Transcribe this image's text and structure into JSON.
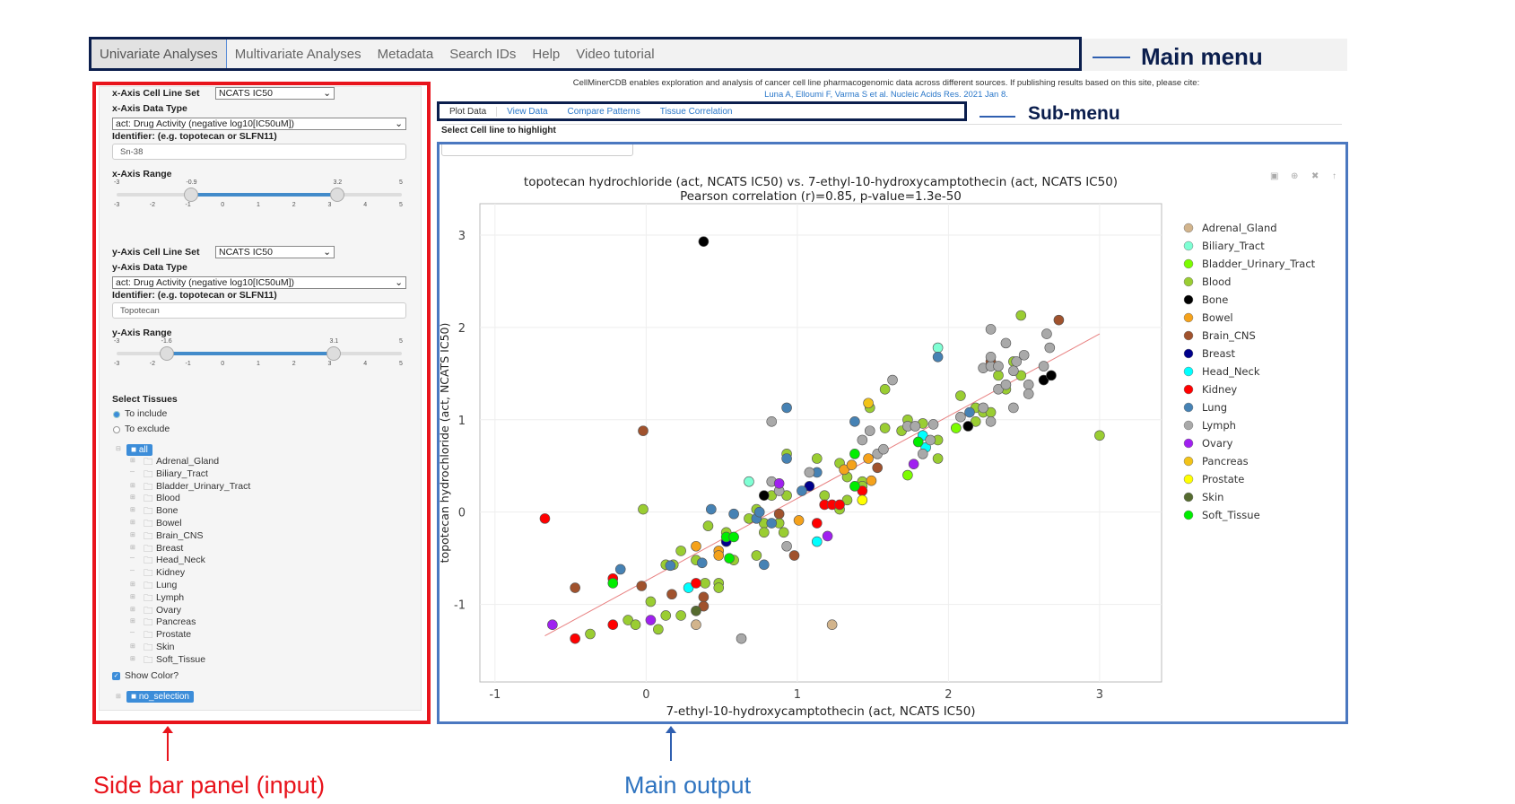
{
  "main_menu": {
    "items": [
      "Univariate Analyses",
      "Multivariate Analyses",
      "Metadata",
      "Search IDs",
      "Help",
      "Video tutorial"
    ],
    "active": 0
  },
  "annotations": {
    "main_menu": "Main menu",
    "sub_menu": "Sub-menu",
    "sidebar": "Side bar panel (input)",
    "main_output": "Main output"
  },
  "citation": {
    "text": "CellMinerCDB enables exploration and analysis of cancer cell line pharmacogenomic data across different sources. If publishing results based on this site, please cite:",
    "link": "Luna A, Elloumi F, Varma S et al. Nucleic Acids Res. 2021 Jan 8."
  },
  "sub_menu": {
    "items": [
      "Plot Data",
      "View Data",
      "Compare Patterns",
      "Tissue Correlation"
    ],
    "active": 0
  },
  "highlight": {
    "label": "Select Cell line to highlight",
    "value": ""
  },
  "sidebar": {
    "x": {
      "cellset_label": "x-Axis Cell Line Set",
      "cellset": "NCATS IC50",
      "datatype_label": "x-Axis Data Type",
      "datatype": "act: Drug Activity (negative log10[IC50uM])",
      "identifier_label": "Identifier: (e.g. topotecan or SLFN11)",
      "identifier": "Sn-38",
      "range_label": "x-Axis Range",
      "min": "-3",
      "max": "5",
      "low": "-0.9",
      "high": "3.2",
      "ticks": [
        "-3",
        "-2",
        "-1",
        "0",
        "1",
        "2",
        "3",
        "4",
        "5"
      ]
    },
    "y": {
      "cellset_label": "y-Axis Cell Line Set",
      "cellset": "NCATS IC50",
      "datatype_label": "y-Axis Data Type",
      "datatype": "act: Drug Activity (negative log10[IC50uM])",
      "identifier_label": "Identifier: (e.g. topotecan or SLFN11)",
      "identifier": "Topotecan",
      "range_label": "y-Axis Range",
      "min": "-3",
      "max": "5",
      "low": "-1.6",
      "high": "3.1",
      "ticks": [
        "-3",
        "-2",
        "-1",
        "0",
        "1",
        "2",
        "3",
        "4",
        "5"
      ]
    },
    "tissues_label": "Select Tissues",
    "include": "To include",
    "exclude": "To exclude",
    "mode": "include",
    "tree_root": "all",
    "tree": [
      {
        "n": "Adrenal_Gland",
        "e": 1
      },
      {
        "n": "Biliary_Tract",
        "e": 0
      },
      {
        "n": "Bladder_Urinary_Tract",
        "e": 1
      },
      {
        "n": "Blood",
        "e": 1
      },
      {
        "n": "Bone",
        "e": 1
      },
      {
        "n": "Bowel",
        "e": 1
      },
      {
        "n": "Brain_CNS",
        "e": 1
      },
      {
        "n": "Breast",
        "e": 1
      },
      {
        "n": "Head_Neck",
        "e": 0
      },
      {
        "n": "Kidney",
        "e": 0
      },
      {
        "n": "Lung",
        "e": 1
      },
      {
        "n": "Lymph",
        "e": 1
      },
      {
        "n": "Ovary",
        "e": 1
      },
      {
        "n": "Pancreas",
        "e": 1
      },
      {
        "n": "Prostate",
        "e": 0
      },
      {
        "n": "Skin",
        "e": 1
      },
      {
        "n": "Soft_Tissue",
        "e": 1
      }
    ],
    "show_color": "Show Color?",
    "show_color_checked": true,
    "no_selection": "no_selection"
  },
  "modebar": [
    "camera-icon",
    "zoom-icon",
    "autoscale-icon",
    "reset-icon"
  ],
  "chart_data": {
    "type": "scatter",
    "title": "topotecan hydrochloride (act, NCATS IC50) vs. 7-ethyl-10-hydroxycamptothecin (act, NCATS IC50)",
    "subtitle": "Pearson correlation (r)=0.85, p-value=1.3e-50",
    "xlabel": "7-ethyl-10-hydroxycamptothecin (act, NCATS IC50)",
    "ylabel": "topotecan hydrochloride (act, NCATS IC50)",
    "xlim": [
      -1.1,
      3.41
    ],
    "ylim": [
      -1.84,
      3.34
    ],
    "xticks": [
      -1,
      0,
      1,
      2,
      3
    ],
    "yticks": [
      -1,
      0,
      1,
      2,
      3
    ],
    "grid": true,
    "legend": "right",
    "fit_line": {
      "x": [
        -0.67,
        3.0
      ],
      "y": [
        -1.34,
        1.93
      ],
      "color": "#e88080"
    },
    "series": [
      {
        "name": "Adrenal_Gland",
        "color": "#d2b48c",
        "x": [
          0.33,
          1.23
        ],
        "y": [
          -1.22,
          -1.22
        ]
      },
      {
        "name": "Biliary_Tract",
        "color": "#7fffd4",
        "x": [
          0.68,
          1.93
        ],
        "y": [
          0.33,
          1.78
        ]
      },
      {
        "name": "Bladder_Urinary_Tract",
        "color": "#7cfc00",
        "x": [
          1.73,
          2.05
        ],
        "y": [
          0.4,
          0.91
        ]
      },
      {
        "name": "Blood",
        "color": "#9acd32",
        "x": [
          -0.37,
          -0.12,
          -0.07,
          0.03,
          0.08,
          0.13,
          0.23,
          -0.02,
          0.13,
          0.18,
          0.23,
          0.33,
          0.39,
          0.48,
          0.48,
          0.41,
          0.53,
          0.58,
          0.68,
          0.73,
          0.73,
          0.78,
          0.78,
          0.83,
          0.88,
          0.91,
          0.93,
          0.93,
          1.13,
          1.18,
          1.28,
          1.28,
          1.33,
          1.33,
          1.43,
          1.43,
          1.48,
          1.58,
          1.58,
          1.69,
          1.73,
          1.83,
          1.93,
          1.93,
          2.08,
          2.18,
          2.23,
          2.18,
          2.28,
          2.33,
          2.38,
          2.43,
          2.48,
          2.48,
          3.0
        ],
        "y": [
          -1.32,
          -1.17,
          -1.22,
          -0.97,
          -1.27,
          -1.12,
          -1.12,
          0.03,
          -0.57,
          -0.57,
          -0.42,
          -0.52,
          -0.77,
          -0.77,
          -0.82,
          -0.15,
          -0.22,
          -0.52,
          -0.07,
          0.03,
          -0.47,
          -0.12,
          -0.22,
          0.18,
          -0.12,
          -0.22,
          0.18,
          0.63,
          0.58,
          0.18,
          0.53,
          0.03,
          0.38,
          0.13,
          0.33,
          0.28,
          1.13,
          1.33,
          0.91,
          0.88,
          1.0,
          0.96,
          0.78,
          0.58,
          1.26,
          1.13,
          1.08,
          0.98,
          1.08,
          1.48,
          1.33,
          1.63,
          1.48,
          2.13,
          0.83
        ]
      },
      {
        "name": "Bone",
        "color": "#000000",
        "x": [
          0.38,
          0.78,
          2.13,
          2.63,
          2.68
        ],
        "y": [
          2.93,
          0.18,
          0.93,
          1.43,
          1.48
        ]
      },
      {
        "name": "Bowel",
        "color": "#f5a21b",
        "x": [
          0.33,
          0.48,
          0.48,
          1.01,
          1.31,
          1.36,
          1.47,
          1.49
        ],
        "y": [
          -0.37,
          -0.42,
          -0.47,
          -0.09,
          0.46,
          0.51,
          0.58,
          0.34
        ]
      },
      {
        "name": "Brain_CNS",
        "color": "#a0522d",
        "x": [
          2.73,
          -0.02,
          -0.47,
          -0.03,
          0.17,
          0.38,
          0.38,
          0.98,
          0.88,
          1.53,
          2.28
        ],
        "y": [
          2.08,
          0.88,
          -0.82,
          -0.8,
          -0.89,
          -0.92,
          -1.02,
          -0.47,
          -0.02,
          0.48,
          1.63
        ]
      },
      {
        "name": "Breast",
        "color": "#00008b",
        "x": [
          1.08,
          0.53
        ],
        "y": [
          0.28,
          -0.32
        ]
      },
      {
        "name": "Head_Neck",
        "color": "#00ffff",
        "x": [
          0.28,
          1.13,
          1.83,
          1.85
        ],
        "y": [
          -0.82,
          -0.32,
          0.83,
          0.7
        ]
      },
      {
        "name": "Kidney",
        "color": "#ff0000",
        "x": [
          -0.67,
          -0.47,
          -0.22,
          -0.22,
          0.33,
          1.13,
          1.18,
          1.23,
          1.28,
          1.43
        ],
        "y": [
          -0.07,
          -1.37,
          -1.22,
          -0.72,
          -0.77,
          -0.12,
          0.08,
          0.08,
          0.08,
          0.23
        ]
      },
      {
        "name": "Lung",
        "color": "#4682b4",
        "x": [
          -0.17,
          0.16,
          0.37,
          0.43,
          0.58,
          0.73,
          0.75,
          0.78,
          0.83,
          0.93,
          0.93,
          1.03,
          1.13,
          1.38,
          1.93,
          2.14
        ],
        "y": [
          -0.62,
          -0.58,
          -0.55,
          0.03,
          -0.02,
          -0.07,
          0.0,
          -0.57,
          -0.12,
          1.13,
          0.58,
          0.23,
          0.43,
          0.98,
          1.68,
          1.08
        ]
      },
      {
        "name": "Lymph",
        "color": "#a9a9a9",
        "x": [
          0.63,
          0.83,
          0.83,
          0.88,
          0.93,
          1.08,
          1.43,
          1.48,
          1.53,
          1.57,
          1.63,
          1.73,
          1.78,
          1.83,
          1.88,
          1.9,
          2.08,
          2.23,
          2.28,
          2.23,
          2.28,
          2.33,
          2.28,
          2.28,
          2.38,
          2.33,
          2.38,
          2.43,
          2.45,
          2.5,
          2.43,
          2.53,
          2.53,
          2.63,
          2.65,
          2.67
        ],
        "y": [
          -1.37,
          0.98,
          0.33,
          0.23,
          -0.37,
          0.43,
          0.78,
          0.88,
          0.63,
          0.68,
          1.43,
          0.93,
          0.93,
          0.63,
          0.78,
          0.95,
          1.03,
          1.13,
          0.98,
          1.56,
          1.58,
          1.58,
          1.68,
          1.98,
          1.83,
          1.33,
          1.38,
          1.53,
          1.63,
          1.7,
          1.13,
          1.38,
          1.28,
          1.58,
          1.93,
          1.78
        ]
      },
      {
        "name": "Ovary",
        "color": "#a020f0",
        "x": [
          -0.62,
          0.03,
          1.2,
          1.77,
          0.88
        ],
        "y": [
          -1.22,
          -1.17,
          -0.26,
          0.52,
          0.31
        ]
      },
      {
        "name": "Pancreas",
        "color": "#f2c318",
        "x": [
          1.47
        ],
        "y": [
          1.18
        ]
      },
      {
        "name": "Prostate",
        "color": "#ffff00",
        "x": [
          1.43
        ],
        "y": [
          0.13
        ]
      },
      {
        "name": "Skin",
        "color": "#556b2f",
        "x": [
          0.33
        ],
        "y": [
          -1.07
        ]
      },
      {
        "name": "Soft_Tissue",
        "color": "#00ee00",
        "x": [
          -0.22,
          0.53,
          0.58,
          0.55,
          1.38,
          1.38,
          1.8
        ],
        "y": [
          -0.77,
          -0.27,
          -0.27,
          -0.5,
          0.63,
          0.28,
          0.76
        ]
      }
    ]
  }
}
